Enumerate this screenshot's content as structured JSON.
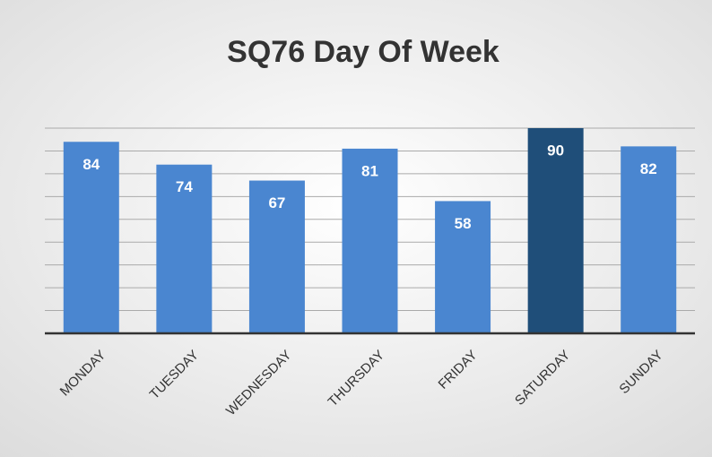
{
  "chart_data": {
    "type": "bar",
    "title": "SQ76 Day Of Week",
    "categories": [
      "MONDAY",
      "TUESDAY",
      "WEDNESDAY",
      "THURSDAY",
      "FRIDAY",
      "SATURDAY",
      "SUNDAY"
    ],
    "values": [
      84,
      74,
      67,
      81,
      58,
      90,
      82
    ],
    "colors": [
      "#4a86d0",
      "#4a86d0",
      "#4a86d0",
      "#4a86d0",
      "#4a86d0",
      "#1f4e79",
      "#4a86d0"
    ],
    "ylim": [
      0,
      90
    ],
    "yticks": [
      0,
      10,
      20,
      30,
      40,
      50,
      60,
      70,
      80,
      90
    ],
    "grid": true
  }
}
